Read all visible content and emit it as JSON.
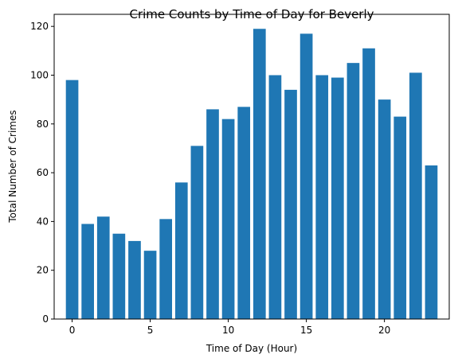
{
  "chart_data": {
    "type": "bar",
    "title": "Crime Counts by Time of Day for Beverly",
    "xlabel": "Time of Day (Hour)",
    "ylabel": "Total Number of Crimes",
    "x": [
      0,
      1,
      2,
      3,
      4,
      5,
      6,
      7,
      8,
      9,
      10,
      11,
      12,
      13,
      14,
      15,
      16,
      17,
      18,
      19,
      20,
      21,
      22,
      23
    ],
    "values": [
      98,
      39,
      42,
      35,
      32,
      28,
      41,
      56,
      71,
      86,
      82,
      87,
      119,
      100,
      94,
      117,
      100,
      99,
      105,
      111,
      90,
      83,
      101,
      63
    ],
    "xlim": [
      -1.15,
      24.15
    ],
    "ylim": [
      0,
      124.95
    ],
    "xticks": [
      0,
      5,
      10,
      15,
      20
    ],
    "yticks": [
      0,
      20,
      40,
      60,
      80,
      100,
      120
    ],
    "grid": false,
    "bar_color": "#1f77b4"
  }
}
